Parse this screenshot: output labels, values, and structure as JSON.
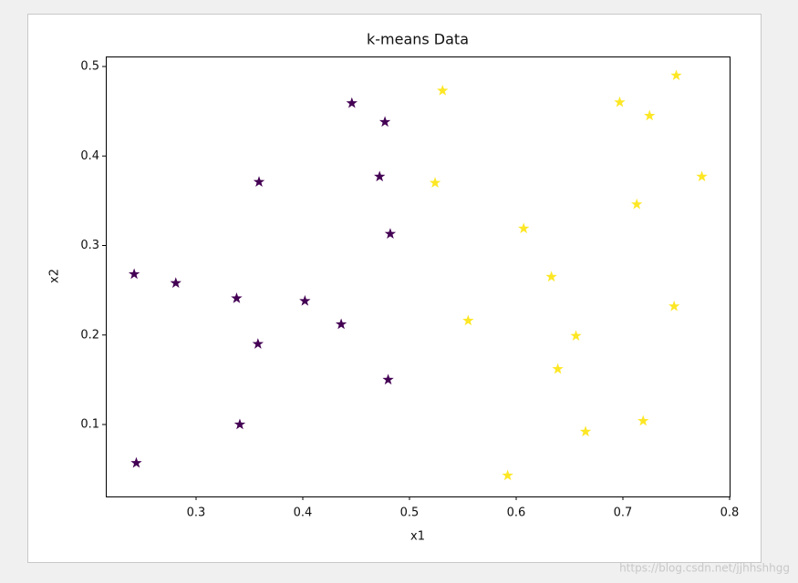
{
  "chart_data": {
    "type": "scatter",
    "title": "k-means Data",
    "x_label": "x1",
    "y_label": "x2",
    "xlim": [
      0.2154,
      0.8
    ],
    "ylim": [
      0.0196,
      0.5112
    ],
    "xticks": [
      0.3,
      0.4,
      0.5,
      0.6,
      0.7,
      0.8
    ],
    "yticks": [
      0.1,
      0.2,
      0.3,
      0.4,
      0.5
    ],
    "marker": "star",
    "series": [
      {
        "color": "#440154",
        "x": [
          0.242,
          0.244,
          0.281,
          0.338,
          0.341,
          0.358,
          0.359,
          0.402,
          0.436,
          0.446,
          0.472,
          0.477,
          0.482,
          0.48
        ],
        "values": [
          0.268,
          0.057,
          0.258,
          0.241,
          0.1,
          0.19,
          0.371,
          0.238,
          0.212,
          0.459,
          0.377,
          0.438,
          0.313,
          0.15
        ]
      },
      {
        "color": "#fde725",
        "x": [
          0.531,
          0.524,
          0.555,
          0.592,
          0.607,
          0.633,
          0.639,
          0.656,
          0.665,
          0.697,
          0.713,
          0.725,
          0.719,
          0.75,
          0.748,
          0.774
        ],
        "values": [
          0.473,
          0.37,
          0.216,
          0.043,
          0.319,
          0.265,
          0.162,
          0.199,
          0.092,
          0.46,
          0.346,
          0.445,
          0.104,
          0.49,
          0.232,
          0.377
        ]
      }
    ]
  },
  "watermark": "https://blog.csdn.net/jjhhshhgg"
}
